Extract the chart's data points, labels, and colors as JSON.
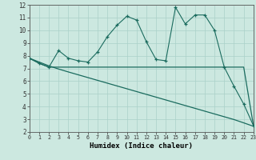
{
  "x": [
    0,
    1,
    2,
    3,
    4,
    5,
    6,
    7,
    8,
    9,
    10,
    11,
    12,
    13,
    14,
    15,
    16,
    17,
    18,
    19,
    20,
    21,
    22,
    23
  ],
  "line1": [
    7.8,
    7.4,
    7.1,
    8.4,
    7.8,
    7.6,
    7.5,
    8.3,
    9.5,
    10.4,
    11.1,
    10.8,
    9.1,
    7.7,
    7.6,
    11.8,
    10.5,
    11.2,
    11.2,
    10.0,
    7.1,
    5.6,
    4.2,
    2.5
  ],
  "line2": [
    7.8,
    7.4,
    7.1,
    7.1,
    7.1,
    7.1,
    7.1,
    7.1,
    7.1,
    7.1,
    7.1,
    7.1,
    7.1,
    7.1,
    7.1,
    7.1,
    7.1,
    7.1,
    7.1,
    7.1,
    7.1,
    7.1,
    7.1,
    2.5
  ],
  "line3": [
    7.8,
    7.5,
    7.2,
    6.95,
    6.72,
    6.5,
    6.28,
    6.06,
    5.84,
    5.62,
    5.4,
    5.18,
    4.96,
    4.74,
    4.52,
    4.3,
    4.08,
    3.86,
    3.64,
    3.42,
    3.2,
    2.98,
    2.72,
    2.45
  ],
  "color": "#1a6b5e",
  "bg_color": "#cce8e0",
  "grid_color": "#aad0c8",
  "xlabel": "Humidex (Indice chaleur)",
  "ylim": [
    2,
    12
  ],
  "xlim": [
    0,
    23
  ],
  "yticks": [
    2,
    3,
    4,
    5,
    6,
    7,
    8,
    9,
    10,
    11,
    12
  ],
  "xticks": [
    0,
    1,
    2,
    3,
    4,
    5,
    6,
    7,
    8,
    9,
    10,
    11,
    12,
    13,
    14,
    15,
    16,
    17,
    18,
    19,
    20,
    21,
    22,
    23
  ],
  "xtick_labels": [
    "0",
    "1",
    "2",
    "3",
    "4",
    "5",
    "6",
    "7",
    "8",
    "9",
    "10",
    "11",
    "12",
    "13",
    "14",
    "15",
    "16",
    "17",
    "18",
    "19",
    "20",
    "21",
    "22",
    "23"
  ]
}
